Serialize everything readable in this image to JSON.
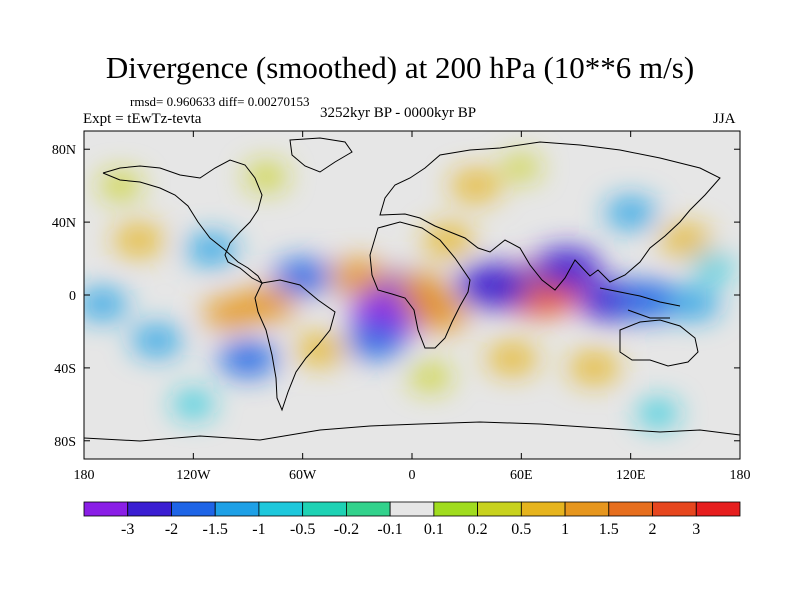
{
  "header": {
    "title": "Divergence (smoothed) at 200 hPa (10**6 m/s)",
    "stats": "rmsd= 0.960633 diff= 0.00270153",
    "experiment": "Expt = tEwTz-tevta",
    "period": "3252kyr BP - 0000kyr BP",
    "season": "JJA"
  },
  "chart_data": {
    "type": "heatmap",
    "title": "Divergence (smoothed) at 200 hPa (10**6 m/s)",
    "xlabel": "",
    "ylabel": "",
    "xlim": [
      -180,
      180
    ],
    "ylim": [
      -90,
      90
    ],
    "x_ticks": [
      {
        "value": -180,
        "label": "180"
      },
      {
        "value": -120,
        "label": "120W"
      },
      {
        "value": -60,
        "label": "60W"
      },
      {
        "value": 0,
        "label": "0"
      },
      {
        "value": 60,
        "label": "60E"
      },
      {
        "value": 120,
        "label": "120E"
      },
      {
        "value": 180,
        "label": "180"
      }
    ],
    "y_ticks": [
      {
        "value": 80,
        "label": "80N"
      },
      {
        "value": 40,
        "label": "40N"
      },
      {
        "value": 0,
        "label": "0"
      },
      {
        "value": -40,
        "label": "40S"
      },
      {
        "value": -80,
        "label": "80S"
      }
    ],
    "contour_levels": [
      "-3",
      "-2",
      "-1.5",
      "-1",
      "-0.5",
      "-0.2",
      "-0.1",
      "0.1",
      "0.2",
      "0.5",
      "1",
      "1.5",
      "2",
      "3"
    ],
    "colorbar_colors": [
      "#8a1ee6",
      "#3a1ed2",
      "#1e64e6",
      "#1ea0e6",
      "#1ec8dc",
      "#1ed2b4",
      "#32d28c",
      "#e6e6e6",
      "#a0dc1e",
      "#c8d21e",
      "#e6b41e",
      "#e6961e",
      "#e66e1e",
      "#e6461e",
      "#e61e1e"
    ],
    "anomalies": [
      {
        "lon": -5,
        "lat": 0,
        "value": -2.5
      },
      {
        "lon": -10,
        "lat": -8,
        "value": -3.0
      },
      {
        "lon": 70,
        "lat": 2,
        "value": 2.8
      },
      {
        "lon": 60,
        "lat": 5,
        "value": 2.0
      },
      {
        "lon": 45,
        "lat": 5,
        "value": -2.5
      },
      {
        "lon": 85,
        "lat": 15,
        "value": -2.0
      },
      {
        "lon": 110,
        "lat": -3,
        "value": -2.0
      },
      {
        "lon": 130,
        "lat": -3,
        "value": -1.8
      },
      {
        "lon": 155,
        "lat": -5,
        "value": -1.0
      },
      {
        "lon": 15,
        "lat": -10,
        "value": 1.5
      },
      {
        "lon": 5,
        "lat": 3,
        "value": 1.2
      },
      {
        "lon": -30,
        "lat": 10,
        "value": 1.5
      },
      {
        "lon": 20,
        "lat": 30,
        "value": 1.0
      },
      {
        "lon": -110,
        "lat": 25,
        "value": -1.0
      },
      {
        "lon": -150,
        "lat": 30,
        "value": 1.0
      },
      {
        "lon": -60,
        "lat": 10,
        "value": -1.5
      },
      {
        "lon": -80,
        "lat": -5,
        "value": 1.5
      },
      {
        "lon": -100,
        "lat": -10,
        "value": 1.2
      },
      {
        "lon": -140,
        "lat": -25,
        "value": -1.0
      },
      {
        "lon": -90,
        "lat": -35,
        "value": -1.5
      },
      {
        "lon": -50,
        "lat": -30,
        "value": 1.0
      },
      {
        "lon": -20,
        "lat": -25,
        "value": -1.5
      },
      {
        "lon": 10,
        "lat": -45,
        "value": 0.5
      },
      {
        "lon": 55,
        "lat": -35,
        "value": 1.0
      },
      {
        "lon": 100,
        "lat": -40,
        "value": 1.0
      },
      {
        "lon": 135,
        "lat": -65,
        "value": -0.5
      },
      {
        "lon": 120,
        "lat": 45,
        "value": -1.0
      },
      {
        "lon": 150,
        "lat": 30,
        "value": 1.0
      },
      {
        "lon": 165,
        "lat": 15,
        "value": -0.5
      },
      {
        "lon": -160,
        "lat": 60,
        "value": 0.5
      },
      {
        "lon": -80,
        "lat": 65,
        "value": 0.5
      },
      {
        "lon": 60,
        "lat": 70,
        "value": 0.3
      },
      {
        "lon": -120,
        "lat": -60,
        "value": -0.5
      },
      {
        "lon": -170,
        "lat": -5,
        "value": -1.0
      },
      {
        "lon": 35,
        "lat": 60,
        "value": 1.0
      }
    ]
  }
}
